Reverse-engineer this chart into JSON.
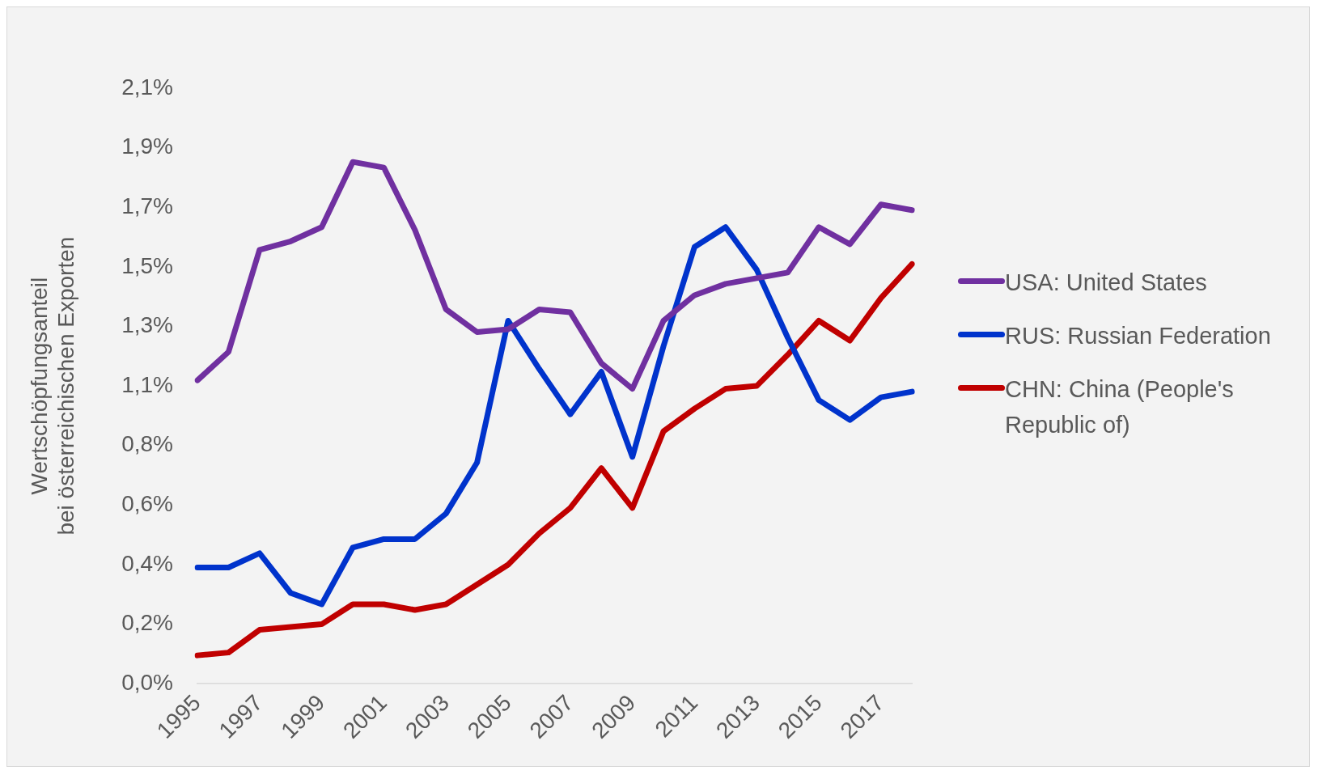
{
  "chart_data": {
    "type": "line",
    "ylabel": "Wertschöpfungsanteil\nbei österreichischen Exporten",
    "categories": [
      "1995",
      null,
      "1997",
      null,
      "1999",
      null,
      "2001",
      null,
      "2003",
      null,
      "2005",
      null,
      "2007",
      null,
      "2009",
      null,
      "2011",
      null,
      "2013",
      null,
      "2015",
      null,
      "2017",
      null
    ],
    "series": [
      {
        "name": "USA: United States",
        "color": "#7030a0",
        "values": [
          1.07,
          1.17,
          1.53,
          1.56,
          1.61,
          1.84,
          1.82,
          1.6,
          1.32,
          1.24,
          1.25,
          1.32,
          1.31,
          1.13,
          1.04,
          1.28,
          1.37,
          1.41,
          1.43,
          1.45,
          1.61,
          1.55,
          1.69,
          1.67
        ]
      },
      {
        "name": "RUS: Russian Federation",
        "color": "#0033cc",
        "values": [
          0.41,
          0.41,
          0.46,
          0.32,
          0.28,
          0.48,
          0.51,
          0.51,
          0.6,
          0.78,
          1.28,
          1.11,
          0.95,
          1.1,
          0.8,
          1.19,
          1.54,
          1.61,
          1.46,
          1.22,
          1.0,
          0.93,
          1.01,
          1.03
        ]
      },
      {
        "name": "CHN: China (People's Republic of)",
        "color": "#c00000",
        "values": [
          0.1,
          0.11,
          0.19,
          0.2,
          0.21,
          0.28,
          0.28,
          0.26,
          0.28,
          0.35,
          0.42,
          0.53,
          0.62,
          0.76,
          0.62,
          0.89,
          0.97,
          1.04,
          1.05,
          1.16,
          1.28,
          1.21,
          1.36,
          1.48
        ]
      }
    ],
    "ylim": [
      0,
      2.1
    ],
    "yticks": [
      {
        "value": 0,
        "label": "0,0%"
      },
      {
        "value": 0.21,
        "label": "0,2%"
      },
      {
        "value": 0.42,
        "label": "0,4%"
      },
      {
        "value": 0.63,
        "label": "0,6%"
      },
      {
        "value": 0.84,
        "label": "0,8%"
      },
      {
        "value": 1.05,
        "label": "1,1%"
      },
      {
        "value": 1.26,
        "label": "1,3%"
      },
      {
        "value": 1.47,
        "label": "1,5%"
      },
      {
        "value": 1.68,
        "label": "1,7%"
      },
      {
        "value": 1.89,
        "label": "1,9%"
      },
      {
        "value": 2.1,
        "label": "2,1%"
      }
    ],
    "grid": false,
    "legend": "right",
    "marker": "none",
    "line_style": "solid"
  }
}
